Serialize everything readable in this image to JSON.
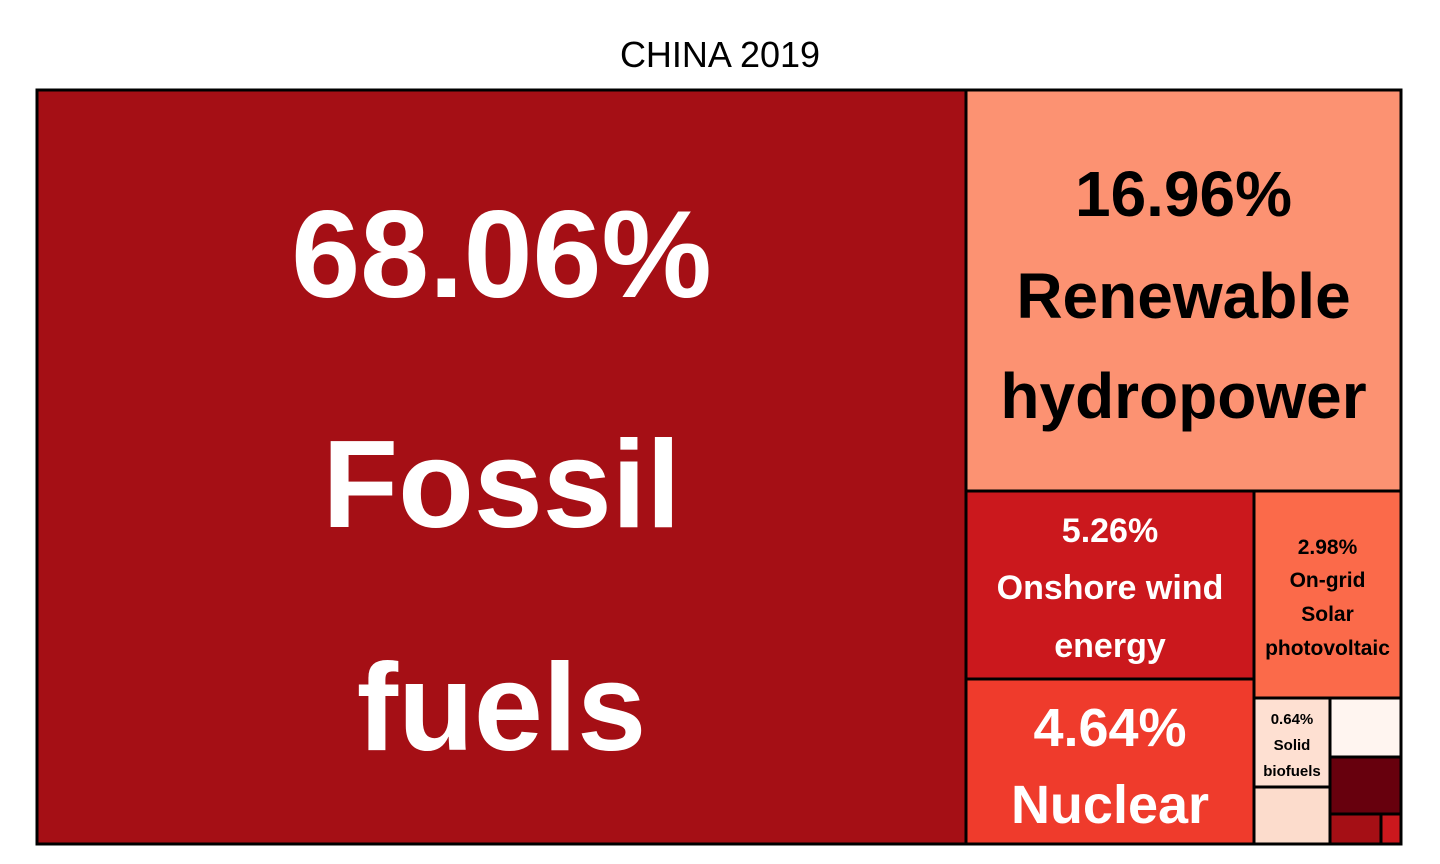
{
  "chart_data": {
    "type": "treemap",
    "title": "CHINA 2019",
    "tiles": [
      {
        "percent": "68.06%",
        "label": "Fossil fuels",
        "value": 68.06,
        "color": "#a50f15",
        "text_color": "#ffffff"
      },
      {
        "percent": "16.96%",
        "label": "Renewable hydropower",
        "value": 16.96,
        "color": "#fc9272",
        "text_color": "#000000"
      },
      {
        "percent": "5.26%",
        "label": "Onshore wind energy",
        "value": 5.26,
        "color": "#cb181d",
        "text_color": "#ffffff"
      },
      {
        "percent": "4.64%",
        "label": "Nuclear",
        "value": 4.64,
        "color": "#ef3b2c",
        "text_color": "#ffffff"
      },
      {
        "percent": "2.98%",
        "label": "On-grid Solar photovoltaic",
        "value": 2.98,
        "color": "#fb6a4a",
        "text_color": "#000000"
      },
      {
        "percent": "0.64%",
        "label": "Solid biofuels",
        "value": 0.64,
        "color": "#fee0d2",
        "text_color": "#000000"
      }
    ],
    "unlabeled_tile_colors": [
      "#fff5f0",
      "#67000d",
      "#fcdccc",
      "#a50f15",
      "#cb181d"
    ]
  }
}
